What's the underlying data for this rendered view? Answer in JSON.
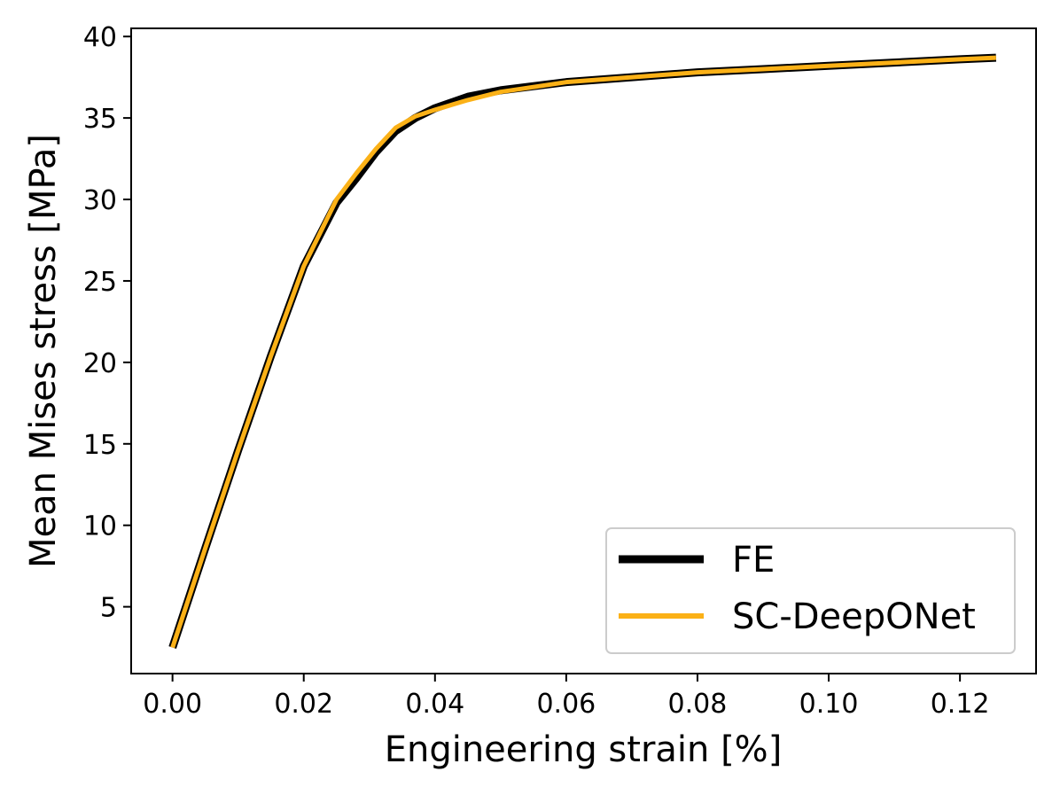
{
  "chart_data": {
    "type": "line",
    "title": "",
    "xlabel": "Engineering strain [%]",
    "ylabel": "Mean Mises stress [MPa]",
    "xlim": [
      -0.0063,
      0.1316
    ],
    "ylim": [
      0.9,
      40.5
    ],
    "xticks": [
      0.0,
      0.02,
      0.04,
      0.06,
      0.08,
      0.1,
      0.12
    ],
    "xtick_labels": [
      "0.00",
      "0.02",
      "0.04",
      "0.06",
      "0.08",
      "0.10",
      "0.12"
    ],
    "yticks": [
      5,
      10,
      15,
      20,
      25,
      30,
      35,
      40
    ],
    "ytick_labels": [
      "5",
      "10",
      "15",
      "20",
      "25",
      "30",
      "35",
      "40"
    ],
    "grid": false,
    "legend_position": "lower-right",
    "series": [
      {
        "name": "FE",
        "color": "#000000",
        "x": [
          0.0,
          0.005,
          0.01,
          0.015,
          0.02,
          0.025,
          0.028,
          0.031,
          0.034,
          0.037,
          0.04,
          0.045,
          0.05,
          0.06,
          0.07,
          0.08,
          0.09,
          0.1,
          0.11,
          0.12,
          0.1255
        ],
        "y": [
          2.5,
          8.6,
          14.6,
          20.4,
          25.9,
          29.8,
          31.3,
          32.9,
          34.2,
          35.0,
          35.6,
          36.3,
          36.7,
          37.2,
          37.5,
          37.8,
          38.0,
          38.2,
          38.4,
          38.6,
          38.7
        ]
      },
      {
        "name": "SC-DeepONet",
        "color": "#fbb117",
        "x": [
          0.0,
          0.005,
          0.01,
          0.015,
          0.02,
          0.025,
          0.028,
          0.031,
          0.034,
          0.037,
          0.04,
          0.045,
          0.05,
          0.06,
          0.07,
          0.08,
          0.09,
          0.1,
          0.11,
          0.12,
          0.1255
        ],
        "y": [
          2.5,
          8.6,
          14.6,
          20.4,
          25.9,
          30.0,
          31.6,
          33.1,
          34.4,
          35.1,
          35.5,
          36.1,
          36.6,
          37.2,
          37.5,
          37.8,
          38.0,
          38.2,
          38.4,
          38.6,
          38.7
        ]
      }
    ]
  }
}
